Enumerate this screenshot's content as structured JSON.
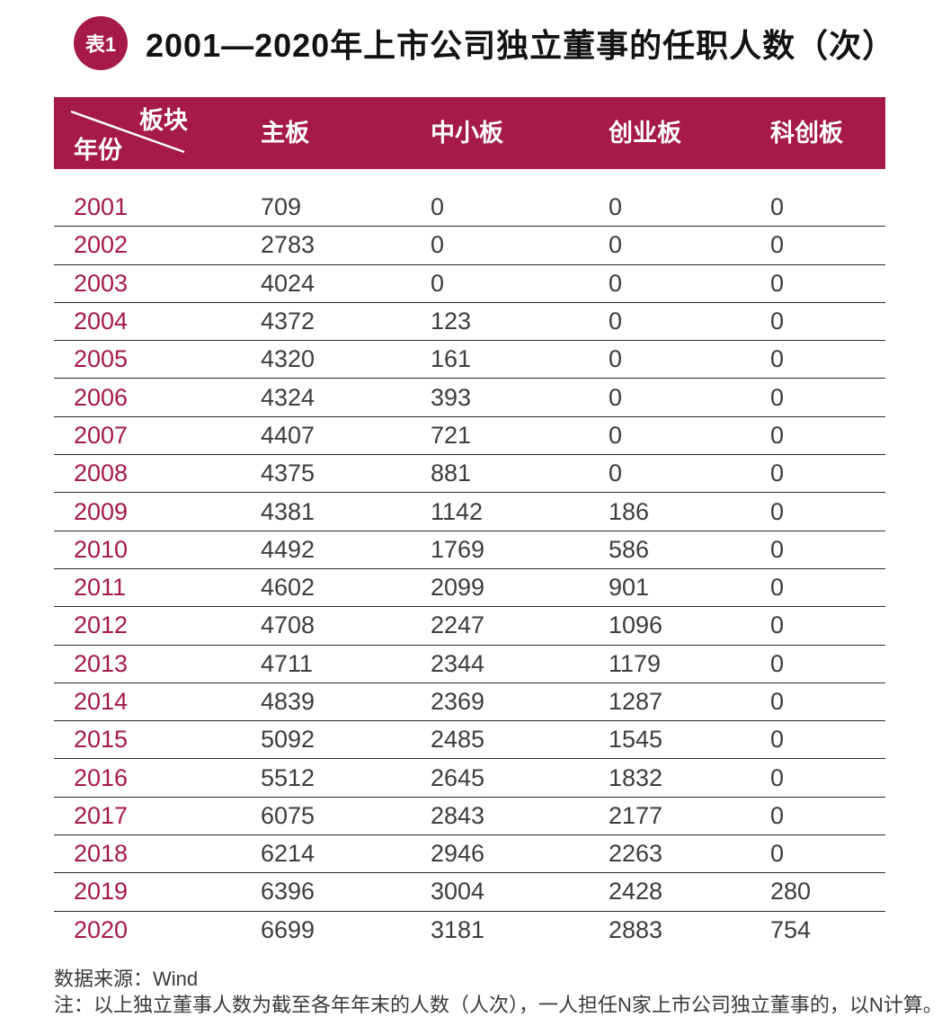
{
  "colors": {
    "accent": "#A5194B",
    "header_text": "#FFFFFF",
    "value_text": "#3D3D3D"
  },
  "badge_label": "表1",
  "title": "2001—2020年上市公司独立董事的任职人数（次）",
  "table": {
    "corner": {
      "top_right": "板块",
      "bottom_left": "年份"
    },
    "columns": [
      "主板",
      "中小板",
      "创业板",
      "科创板"
    ],
    "rows": [
      {
        "year": "2001",
        "values": [
          "709",
          "0",
          "0",
          "0"
        ]
      },
      {
        "year": "2002",
        "values": [
          "2783",
          "0",
          "0",
          "0"
        ]
      },
      {
        "year": "2003",
        "values": [
          "4024",
          "0",
          "0",
          "0"
        ]
      },
      {
        "year": "2004",
        "values": [
          "4372",
          "123",
          "0",
          "0"
        ]
      },
      {
        "year": "2005",
        "values": [
          "4320",
          "161",
          "0",
          "0"
        ]
      },
      {
        "year": "2006",
        "values": [
          "4324",
          "393",
          "0",
          "0"
        ]
      },
      {
        "year": "2007",
        "values": [
          "4407",
          "721",
          "0",
          "0"
        ]
      },
      {
        "year": "2008",
        "values": [
          "4375",
          "881",
          "0",
          "0"
        ]
      },
      {
        "year": "2009",
        "values": [
          "4381",
          "1142",
          "186",
          "0"
        ]
      },
      {
        "year": "2010",
        "values": [
          "4492",
          "1769",
          "586",
          "0"
        ]
      },
      {
        "year": "2011",
        "values": [
          "4602",
          "2099",
          "901",
          "0"
        ]
      },
      {
        "year": "2012",
        "values": [
          "4708",
          "2247",
          "1096",
          "0"
        ]
      },
      {
        "year": "2013",
        "values": [
          "4711",
          "2344",
          "1179",
          "0"
        ]
      },
      {
        "year": "2014",
        "values": [
          "4839",
          "2369",
          "1287",
          "0"
        ]
      },
      {
        "year": "2015",
        "values": [
          "5092",
          "2485",
          "1545",
          "0"
        ]
      },
      {
        "year": "2016",
        "values": [
          "5512",
          "2645",
          "1832",
          "0"
        ]
      },
      {
        "year": "2017",
        "values": [
          "6075",
          "2843",
          "2177",
          "0"
        ]
      },
      {
        "year": "2018",
        "values": [
          "6214",
          "2946",
          "2263",
          "0"
        ]
      },
      {
        "year": "2019",
        "values": [
          "6396",
          "3004",
          "2428",
          "280"
        ]
      },
      {
        "year": "2020",
        "values": [
          "6699",
          "3181",
          "2883",
          "754"
        ]
      }
    ]
  },
  "footer": {
    "source": "数据来源：Wind",
    "note": "注：以上独立董事人数为截至各年年末的人数（人次），一人担任N家上市公司独立董事的，以N计算。"
  },
  "chart_data": {
    "type": "table",
    "title": "2001—2020年上市公司独立董事的任职人数（次）",
    "row_header_label": "年份",
    "column_group_label": "板块",
    "categories": [
      "2001",
      "2002",
      "2003",
      "2004",
      "2005",
      "2006",
      "2007",
      "2008",
      "2009",
      "2010",
      "2011",
      "2012",
      "2013",
      "2014",
      "2015",
      "2016",
      "2017",
      "2018",
      "2019",
      "2020"
    ],
    "series": [
      {
        "name": "主板",
        "values": [
          709,
          2783,
          4024,
          4372,
          4320,
          4324,
          4407,
          4375,
          4381,
          4492,
          4602,
          4708,
          4711,
          4839,
          5092,
          5512,
          6075,
          6214,
          6396,
          6699
        ]
      },
      {
        "name": "中小板",
        "values": [
          0,
          0,
          0,
          123,
          161,
          393,
          721,
          881,
          1142,
          1769,
          2099,
          2247,
          2344,
          2369,
          2485,
          2645,
          2843,
          2946,
          3004,
          3181
        ]
      },
      {
        "name": "创业板",
        "values": [
          0,
          0,
          0,
          0,
          0,
          0,
          0,
          0,
          186,
          586,
          901,
          1096,
          1179,
          1287,
          1545,
          1832,
          2177,
          2263,
          2428,
          2883
        ]
      },
      {
        "name": "科创板",
        "values": [
          0,
          0,
          0,
          0,
          0,
          0,
          0,
          0,
          0,
          0,
          0,
          0,
          0,
          0,
          0,
          0,
          0,
          0,
          280,
          754
        ]
      }
    ],
    "source": "Wind",
    "note": "以上独立董事人数为截至各年年末的人数（人次），一人担任N家上市公司独立董事的，以N计算。"
  }
}
